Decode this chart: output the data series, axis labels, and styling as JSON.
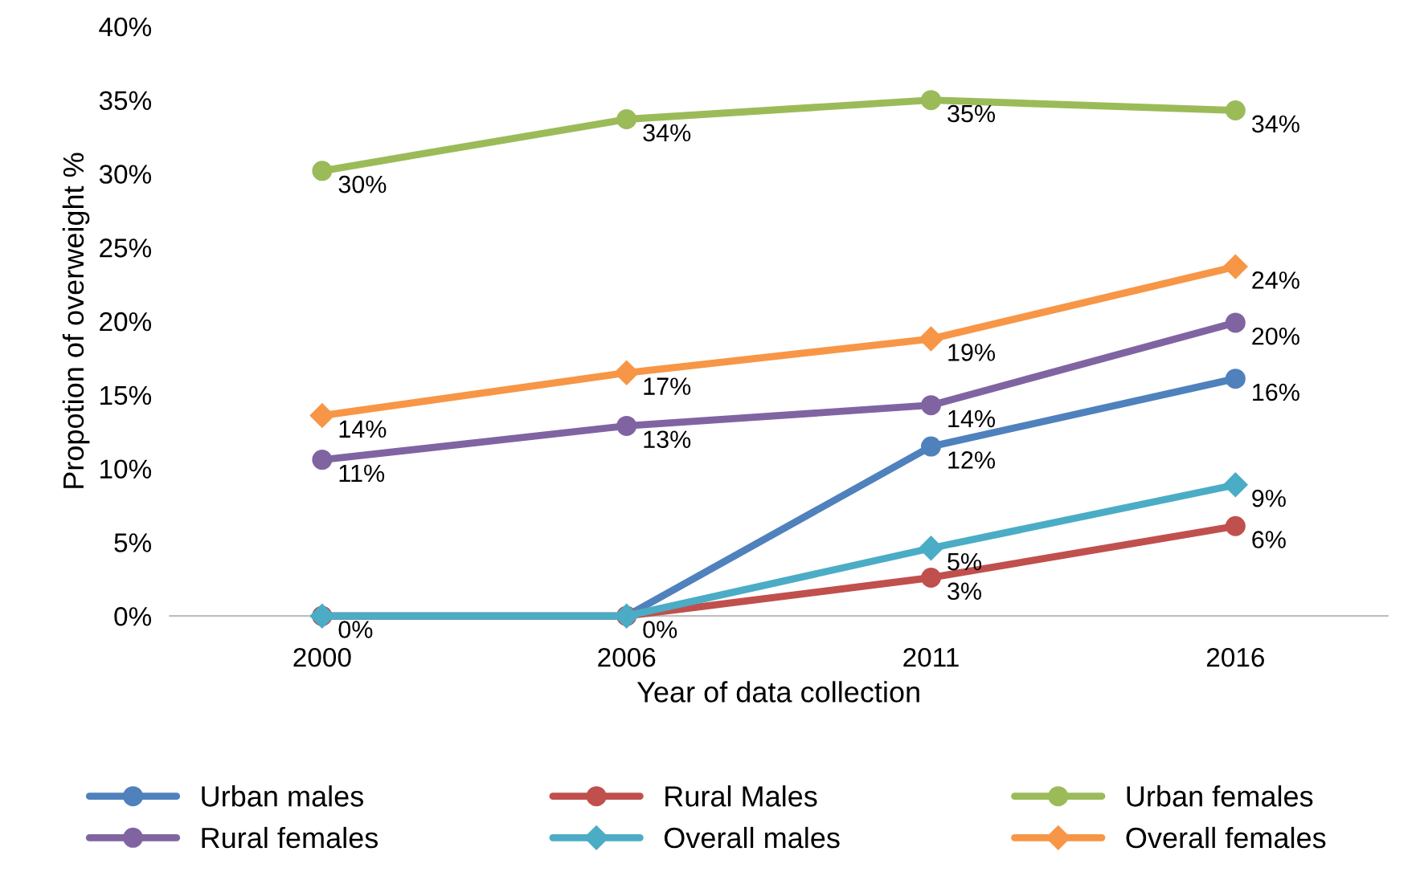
{
  "chart_data": {
    "type": "line",
    "xlabel": "Year of data collection",
    "ylabel": "Propotion of overweight %",
    "categories": [
      "2000",
      "2006",
      "2011",
      "2016"
    ],
    "ylim": [
      0,
      40
    ],
    "yticks": [
      {
        "value": 0,
        "label": "0%"
      },
      {
        "value": 5,
        "label": "5%"
      },
      {
        "value": 10,
        "label": "10%"
      },
      {
        "value": 15,
        "label": "15%"
      },
      {
        "value": 20,
        "label": "20%"
      },
      {
        "value": 25,
        "label": "25%"
      },
      {
        "value": 30,
        "label": "30%"
      },
      {
        "value": 35,
        "label": "35%"
      },
      {
        "value": 40,
        "label": "40%"
      }
    ],
    "grid": false,
    "legend": "bottom",
    "series": [
      {
        "name": "Urban males",
        "color": "#4f81bd",
        "marker": "circle",
        "values": [
          0,
          0,
          11.5,
          16.1
        ],
        "value_labels": [
          null,
          null,
          "12%",
          "16%"
        ]
      },
      {
        "name": "Rural Males",
        "color": "#c0504d",
        "marker": "circle",
        "values": [
          0,
          0,
          2.6,
          6.1
        ],
        "value_labels": [
          null,
          null,
          "3%",
          "6%"
        ]
      },
      {
        "name": "Urban females",
        "color": "#9bbb59",
        "marker": "circle",
        "values": [
          30.2,
          33.7,
          35.0,
          34.3
        ],
        "value_labels": [
          "30%",
          "34%",
          "35%",
          "34%"
        ]
      },
      {
        "name": "Rural females",
        "color": "#8064a2",
        "marker": "circle",
        "values": [
          10.6,
          12.9,
          14.3,
          19.9
        ],
        "value_labels": [
          "11%",
          "13%",
          "14%",
          "20%"
        ]
      },
      {
        "name": "Overall males",
        "color": "#4bacc6",
        "marker": "diamond",
        "values": [
          0,
          0,
          4.6,
          8.9
        ],
        "value_labels": [
          "0%",
          "0%",
          "5%",
          "9%"
        ]
      },
      {
        "name": "Overall females",
        "color": "#f79646",
        "marker": "diamond",
        "values": [
          13.6,
          16.5,
          18.8,
          23.7
        ],
        "value_labels": [
          "14%",
          "17%",
          "19%",
          "24%"
        ]
      }
    ]
  }
}
